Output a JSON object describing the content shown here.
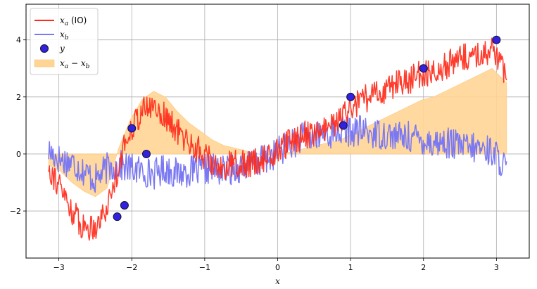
{
  "chart_data": {
    "type": "line",
    "xlabel": "x",
    "ylabel": "",
    "xlim": [
      -3.45,
      3.45
    ],
    "ylim": [
      -3.65,
      5.25
    ],
    "grid": true,
    "x_ticks": [
      -3,
      -2,
      -1,
      0,
      1,
      2,
      3
    ],
    "x_tick_labels": [
      "−3",
      "−2",
      "−1",
      "0",
      "1",
      "2",
      "3"
    ],
    "y_ticks": [
      -2,
      0,
      2,
      4
    ],
    "y_tick_labels": [
      "−2",
      "0",
      "2",
      "4"
    ],
    "legend": {
      "position": "upper-left",
      "entries": [
        {
          "id": "xa",
          "main": "x",
          "sub": "a",
          "suffix": " (IO)"
        },
        {
          "id": "xb",
          "main": "x",
          "sub": "b",
          "suffix": ""
        },
        {
          "id": "y",
          "main": "y",
          "sub": "",
          "suffix": ""
        },
        {
          "id": "diff",
          "main": "x",
          "sub": "a",
          "mid": " − ",
          "main2": "x",
          "sub2": "b"
        }
      ]
    },
    "colors": {
      "xa": "#ff2a1a",
      "xb": "#7a78f2",
      "y_fill": "#3322dd",
      "y_edge": "#111133",
      "diff_fill": "#ffd595",
      "diff_edge": "#ffc77a"
    },
    "series": [
      {
        "name": "x_a (IO)",
        "x": [
          -3.14,
          -2.98,
          -2.82,
          -2.66,
          -2.5,
          -2.34,
          -2.18,
          -2.02,
          -1.86,
          -1.7,
          -1.54,
          -1.38,
          -1.22,
          -1.06,
          -0.9,
          -0.74,
          -0.58,
          -0.42,
          -0.26,
          -0.1,
          0.06,
          0.22,
          0.38,
          0.54,
          0.7,
          0.86,
          1.02,
          1.18,
          1.34,
          1.5,
          1.66,
          1.82,
          1.98,
          2.14,
          2.3,
          2.46,
          2.62,
          2.78,
          2.94,
          3.14
        ],
        "y": [
          -0.4,
          -1.2,
          -2.0,
          -2.6,
          -2.5,
          -1.9,
          -0.4,
          0.9,
          1.5,
          1.7,
          1.3,
          0.8,
          0.4,
          0.1,
          -0.3,
          -0.5,
          -0.3,
          -0.4,
          -0.2,
          -0.1,
          0.2,
          0.5,
          0.7,
          0.7,
          0.9,
          1.2,
          1.6,
          1.9,
          2.1,
          2.3,
          2.5,
          2.6,
          2.8,
          2.9,
          3.1,
          3.3,
          3.4,
          3.5,
          3.7,
          2.6
        ]
      },
      {
        "name": "x_b",
        "x": [
          -3.14,
          -2.98,
          -2.82,
          -2.66,
          -2.5,
          -2.34,
          -2.18,
          -2.02,
          -1.86,
          -1.7,
          -1.54,
          -1.38,
          -1.22,
          -1.06,
          -0.9,
          -0.74,
          -0.58,
          -0.42,
          -0.26,
          -0.1,
          0.06,
          0.22,
          0.38,
          0.54,
          0.7,
          0.86,
          1.02,
          1.18,
          1.34,
          1.5,
          1.66,
          1.82,
          1.98,
          2.14,
          2.3,
          2.46,
          2.62,
          2.78,
          2.94,
          3.14
        ],
        "y": [
          0.1,
          -0.2,
          -0.3,
          -0.6,
          -0.9,
          -0.5,
          -0.4,
          -0.5,
          -0.6,
          -0.7,
          -0.5,
          -0.7,
          -0.6,
          -0.6,
          -0.5,
          -0.6,
          -0.5,
          -0.4,
          -0.3,
          -0.1,
          0.2,
          0.4,
          0.6,
          0.6,
          0.7,
          0.8,
          0.8,
          0.8,
          0.7,
          0.7,
          0.6,
          0.6,
          0.5,
          0.4,
          0.4,
          0.3,
          0.2,
          0.2,
          0.1,
          -0.5
        ]
      },
      {
        "name": "y",
        "type": "scatter",
        "x": [
          -2.2,
          -2.1,
          -2.0,
          -1.8,
          0.9,
          1.0,
          2.0,
          3.0
        ],
        "y": [
          -2.2,
          -1.8,
          0.9,
          0.0,
          1.0,
          2.0,
          3.0,
          4.0
        ]
      },
      {
        "name": "x_a − x_b",
        "type": "fill_between",
        "x": [
          -3.14,
          -2.98,
          -2.82,
          -2.66,
          -2.5,
          -2.34,
          -2.18,
          -2.02,
          -1.86,
          -1.7,
          -1.54,
          -1.38,
          -1.22,
          -1.06,
          -0.9,
          -0.74,
          -0.58,
          -0.42,
          -0.26,
          -0.1,
          0.06,
          0.22,
          0.38,
          0.54,
          0.7,
          0.86,
          1.02,
          1.18,
          1.34,
          1.5,
          1.66,
          1.82,
          1.98,
          2.14,
          2.3,
          2.46,
          2.62,
          2.78,
          2.94,
          3.14
        ],
        "y": [
          -0.4,
          -0.6,
          -1.0,
          -1.3,
          -1.5,
          -1.2,
          0.2,
          1.2,
          1.9,
          2.2,
          2.0,
          1.5,
          1.1,
          0.8,
          0.5,
          0.3,
          0.2,
          0.1,
          0.0,
          0.0,
          0.0,
          0.1,
          0.2,
          0.3,
          0.4,
          0.5,
          0.7,
          0.9,
          1.1,
          1.3,
          1.5,
          1.7,
          1.9,
          2.0,
          2.2,
          2.4,
          2.6,
          2.8,
          3.0,
          2.5
        ]
      }
    ]
  }
}
